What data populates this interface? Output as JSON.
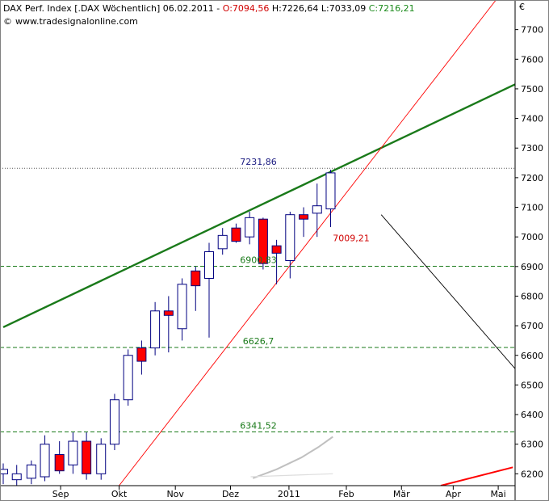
{
  "header": {
    "title": "DAX Perf. Index [.DAX  Wöchentlich] 06.02.2011 - ",
    "open_label": "O:7094,56",
    "hlc_label": " H:7226,64 L:7033,09 ",
    "close_label": "C:7216,21",
    "source": "www.tradesignalonline.com"
  },
  "chart_data": {
    "type": "candlestick",
    "currency_symbol": "€",
    "ylim": [
      6160,
      7800
    ],
    "yticks": [
      6200,
      6300,
      6400,
      6500,
      6600,
      6700,
      6800,
      6900,
      7000,
      7100,
      7200,
      7300,
      7400,
      7500,
      7600,
      7700
    ],
    "ytick_labels": [
      "6200",
      "6300",
      "6400",
      "6500",
      "6600",
      "6700",
      "6800",
      "6900",
      "7000",
      "7100",
      "7200",
      "7300",
      "7400",
      "7500",
      "7600",
      "7700"
    ],
    "xlim": [
      0,
      45.5
    ],
    "xticks": [
      {
        "x": 5.1,
        "label": "Sep"
      },
      {
        "x": 10.3,
        "label": "Okt"
      },
      {
        "x": 15.3,
        "label": "Nov"
      },
      {
        "x": 20.2,
        "label": "Dez"
      },
      {
        "x": 25.4,
        "label": "2011"
      },
      {
        "x": 30.5,
        "label": "Feb"
      },
      {
        "x": 35.4,
        "label": "Mär"
      },
      {
        "x": 40.0,
        "label": "Apr"
      },
      {
        "x": 44.0,
        "label": "Mai"
      }
    ],
    "candles": [
      {
        "x": 0,
        "open": 6200,
        "high": 6235,
        "low": 6165,
        "close": 6215
      },
      {
        "x": 1.2,
        "open": 6180,
        "high": 6230,
        "low": 6160,
        "close": 6200
      },
      {
        "x": 2.5,
        "open": 6185,
        "high": 6245,
        "low": 6165,
        "close": 6230
      },
      {
        "x": 3.7,
        "open": 6190,
        "high": 6330,
        "low": 6175,
        "close": 6300
      },
      {
        "x": 5.0,
        "open": 6265,
        "high": 6310,
        "low": 6200,
        "close": 6210
      },
      {
        "x": 6.2,
        "open": 6230,
        "high": 6340,
        "low": 6200,
        "close": 6310
      },
      {
        "x": 7.4,
        "open": 6310,
        "high": 6340,
        "low": 6180,
        "close": 6200
      },
      {
        "x": 8.7,
        "open": 6200,
        "high": 6320,
        "low": 6180,
        "close": 6300
      },
      {
        "x": 9.9,
        "open": 6300,
        "high": 6470,
        "low": 6280,
        "close": 6450
      },
      {
        "x": 11.1,
        "open": 6450,
        "high": 6620,
        "low": 6430,
        "close": 6600
      },
      {
        "x": 12.3,
        "open": 6625,
        "high": 6650,
        "low": 6535,
        "close": 6580
      },
      {
        "x": 13.5,
        "open": 6625,
        "high": 6780,
        "low": 6600,
        "close": 6750
      },
      {
        "x": 14.7,
        "open": 6750,
        "high": 6800,
        "low": 6610,
        "close": 6735
      },
      {
        "x": 15.9,
        "open": 6690,
        "high": 6860,
        "low": 6650,
        "close": 6840
      },
      {
        "x": 17.1,
        "open": 6885,
        "high": 6900,
        "low": 6750,
        "close": 6835
      },
      {
        "x": 18.3,
        "open": 6860,
        "high": 6980,
        "low": 6660,
        "close": 6950
      },
      {
        "x": 19.5,
        "open": 6960,
        "high": 7030,
        "low": 6940,
        "close": 7005
      },
      {
        "x": 20.7,
        "open": 7030,
        "high": 7045,
        "low": 6980,
        "close": 6985
      },
      {
        "x": 21.9,
        "open": 7000,
        "high": 7085,
        "low": 6975,
        "close": 7065
      },
      {
        "x": 23.1,
        "open": 7060,
        "high": 7065,
        "low": 6890,
        "close": 6910
      },
      {
        "x": 24.3,
        "open": 6970,
        "high": 6990,
        "low": 6840,
        "close": 6945
      },
      {
        "x": 25.5,
        "open": 6920,
        "high": 7085,
        "low": 6860,
        "close": 7075
      },
      {
        "x": 26.7,
        "open": 7075,
        "high": 7100,
        "low": 7000,
        "close": 7060
      },
      {
        "x": 27.9,
        "open": 7080,
        "high": 7180,
        "low": 7000,
        "close": 7105
      },
      {
        "x": 29.1,
        "open": 7094.56,
        "high": 7226.64,
        "low": 7033.09,
        "close": 7216.21
      }
    ],
    "level_lines": [
      {
        "value": 7231.86,
        "label": "7231,86",
        "style": "dotted",
        "color": "#555555",
        "label_color": "#1a1a80"
      },
      {
        "value": 6900.83,
        "label": "6900,83",
        "style": "dashed",
        "color": "#1a7a1a",
        "label_color": "#1a7a1a"
      },
      {
        "value": 6626.7,
        "label": "6626,7",
        "style": "dashed",
        "color": "#1a7a1a",
        "label_color": "#1a7a1a"
      },
      {
        "value": 6341.52,
        "label": "6341,52",
        "style": "dashed",
        "color": "#1a7a1a",
        "label_color": "#1a7a1a"
      }
    ],
    "trendlines": [
      {
        "name": "green-resistance",
        "color": "#1a7a1a",
        "width": 2.4,
        "points": [
          [
            0,
            6695
          ],
          [
            45.5,
            7515
          ]
        ]
      },
      {
        "name": "red-support",
        "color": "#ff0000",
        "width": 0.9,
        "points": [
          [
            10.3,
            6160
          ],
          [
            43.8,
            7800
          ]
        ]
      },
      {
        "name": "black-down",
        "color": "#000000",
        "width": 0.9,
        "points": [
          [
            33.6,
            7075
          ],
          [
            45.5,
            6555
          ]
        ]
      },
      {
        "name": "red-bottom",
        "color": "#ff0000",
        "width": 2.0,
        "points": [
          [
            38.9,
            6160
          ],
          [
            45.3,
            6222
          ]
        ]
      },
      {
        "name": "gray-ma",
        "color": "#c0c0c0",
        "width": 2.0,
        "points": [
          [
            22.2,
            6185
          ],
          [
            24.3,
            6215
          ],
          [
            26.5,
            6255
          ],
          [
            28.0,
            6290
          ],
          [
            29.3,
            6325
          ]
        ]
      },
      {
        "name": "gray-flat",
        "color": "#dddddd",
        "width": 1.2,
        "points": [
          [
            22.0,
            6190
          ],
          [
            29.3,
            6200
          ]
        ]
      }
    ],
    "annotations": [
      {
        "text": "7009,21",
        "x": 29.3,
        "y": 6985,
        "color": "#d00000"
      }
    ],
    "colors": {
      "up_fill": "#ffffff",
      "down_fill": "#ff0000",
      "outline": "#000080",
      "wick": "#000080",
      "axis": "#000000",
      "frame": "#808080"
    }
  }
}
